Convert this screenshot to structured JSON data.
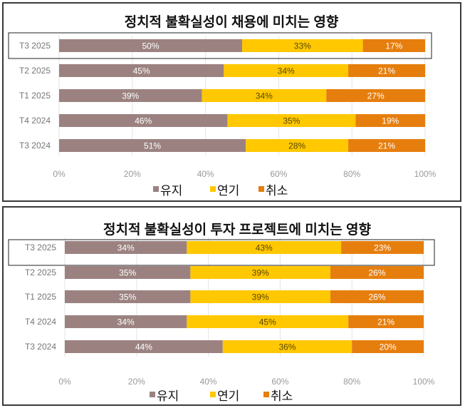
{
  "colors": {
    "유지": "#9b8281",
    "연기": "#ffc800",
    "취소": "#e67e0e"
  },
  "chart_data": [
    {
      "type": "bar",
      "orientation": "horizontal",
      "stacked": "100%",
      "title": "정치적 불확실성이 채용에 미치는 영향",
      "categories": [
        "T3 2025",
        "T2 2025",
        "T1 2025",
        "T4 2024",
        "T3 2024"
      ],
      "highlighted_category": "T3 2025",
      "series": [
        {
          "name": "유지",
          "values": [
            50,
            45,
            39,
            46,
            51
          ]
        },
        {
          "name": "연기",
          "values": [
            33,
            34,
            34,
            35,
            28
          ]
        },
        {
          "name": "취소",
          "values": [
            17,
            21,
            27,
            19,
            21
          ]
        }
      ],
      "xticks": [
        "0%",
        "20%",
        "40%",
        "60%",
        "80%",
        "100%"
      ],
      "xlim": [
        0,
        100
      ],
      "grid": true,
      "legend": "bottom"
    },
    {
      "type": "bar",
      "orientation": "horizontal",
      "stacked": "100%",
      "title": "정치적 불확실성이 투자 프로젝트에 미치는 영향",
      "categories": [
        "T3 2025",
        "T2 2025",
        "T1 2025",
        "T4 2024",
        "T3 2024"
      ],
      "highlighted_category": "T3 2025",
      "series": [
        {
          "name": "유지",
          "values": [
            34,
            35,
            35,
            34,
            44
          ]
        },
        {
          "name": "연기",
          "values": [
            43,
            39,
            39,
            45,
            36
          ]
        },
        {
          "name": "취소",
          "values": [
            23,
            26,
            26,
            21,
            20
          ]
        }
      ],
      "xticks": [
        "0%",
        "20%",
        "40%",
        "60%",
        "80%",
        "100%"
      ],
      "xlim": [
        0,
        100
      ],
      "grid": true,
      "legend": "bottom"
    }
  ]
}
